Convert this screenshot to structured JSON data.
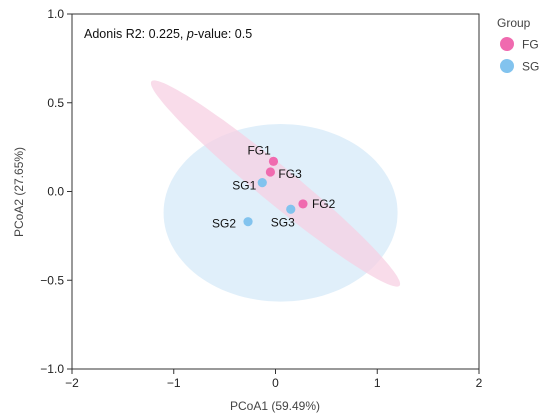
{
  "chart_data": {
    "type": "scatter",
    "xlabel": "PCoA1 (59.49%)",
    "ylabel": "PCoA2 (27.65%)",
    "xlim": [
      -2,
      2
    ],
    "ylim": [
      -1.0,
      1.0
    ],
    "x_ticks": [
      -2,
      -1,
      0,
      1,
      2
    ],
    "y_ticks": [
      -1.0,
      -0.5,
      0.0,
      0.5,
      1.0
    ],
    "x_tick_labels": [
      "−2",
      "−1",
      "0",
      "1",
      "2"
    ],
    "y_tick_labels": [
      "−1.0",
      "−0.5",
      "0.0",
      "0.5",
      "1.0"
    ],
    "grid": false,
    "annotation": {
      "prefix": "Adonis R2: 0.225, ",
      "italic": "p",
      "suffix": "-value: 0.5"
    },
    "legend": {
      "title": "Group",
      "placement": "outside-right-top",
      "entries": [
        {
          "name": "FG",
          "color": "#f06aaf"
        },
        {
          "name": "SG",
          "color": "#82c3ee"
        }
      ]
    },
    "ellipses": [
      {
        "group": "SG",
        "color": "#d4e9f8",
        "center": [
          0.05,
          -0.12
        ],
        "semi_axes": [
          1.15,
          0.5
        ],
        "angle_deg": 0
      },
      {
        "group": "FG",
        "color": "#f6cfe2",
        "center": [
          0.0,
          0.045
        ],
        "semi_axes": [
          1.35,
          0.12
        ],
        "angle_deg": -25
      }
    ],
    "series": [
      {
        "name": "FG",
        "color": "#f06aaf",
        "points": [
          {
            "label": "FG1",
            "x": -0.02,
            "y": 0.17
          },
          {
            "label": "FG2",
            "x": 0.27,
            "y": -0.07
          },
          {
            "label": "FG3",
            "x": -0.05,
            "y": 0.11
          }
        ]
      },
      {
        "name": "SG",
        "color": "#82c3ee",
        "points": [
          {
            "label": "SG1",
            "x": -0.13,
            "y": 0.05
          },
          {
            "label": "SG2",
            "x": -0.27,
            "y": -0.17
          },
          {
            "label": "SG3",
            "x": 0.15,
            "y": -0.1
          }
        ]
      }
    ]
  }
}
